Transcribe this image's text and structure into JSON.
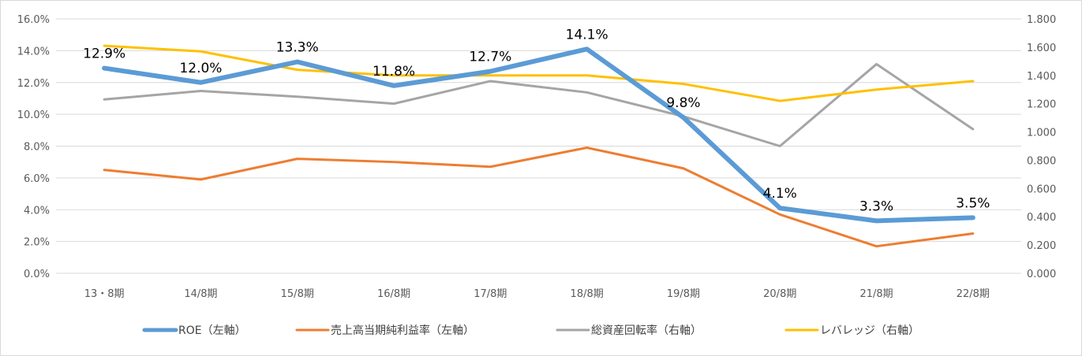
{
  "chart_data": {
    "type": "line",
    "categories": [
      "13・8期",
      "14/8期",
      "15/8期",
      "16/8期",
      "17/8期",
      "18/8期",
      "19/8期",
      "20/8期",
      "21/8期",
      "22/8期"
    ],
    "y_left": {
      "ylim": [
        0,
        16
      ],
      "ticks": [
        "0.0%",
        "2.0%",
        "4.0%",
        "6.0%",
        "8.0%",
        "10.0%",
        "12.0%",
        "14.0%",
        "16.0%"
      ]
    },
    "y_right": {
      "ylim": [
        0,
        1.8
      ],
      "ticks": [
        "0.000",
        "0.200",
        "0.400",
        "0.600",
        "0.800",
        "1.000",
        "1.200",
        "1.400",
        "1.600",
        "1.800"
      ]
    },
    "grid": true,
    "legend_position": "bottom",
    "series": [
      {
        "name": "ROE（左軸）",
        "axis": "left",
        "color": "#5b9bd5",
        "width": 6,
        "values": [
          12.9,
          12.0,
          13.3,
          11.8,
          12.7,
          14.1,
          9.8,
          4.1,
          3.3,
          3.5
        ],
        "labels": [
          "12.9%",
          "12.0%",
          "13.3%",
          "11.8%",
          "12.7%",
          "14.1%",
          "9.8%",
          "4.1%",
          "3.3%",
          "3.5%"
        ]
      },
      {
        "name": "売上高当期純利益率（左軸）",
        "axis": "left",
        "color": "#ed7d31",
        "width": 3,
        "values": [
          6.5,
          5.9,
          7.2,
          7.0,
          6.7,
          7.9,
          6.6,
          3.7,
          1.7,
          2.5
        ]
      },
      {
        "name": "総資産回転率（右軸）",
        "axis": "right",
        "color": "#a5a5a5",
        "width": 3,
        "values": [
          1.23,
          1.29,
          1.25,
          1.2,
          1.36,
          1.28,
          1.11,
          0.9,
          1.48,
          1.02
        ]
      },
      {
        "name": "レバレッジ（右軸）",
        "axis": "right",
        "color": "#ffc000",
        "width": 3,
        "values": [
          1.61,
          1.57,
          1.44,
          1.4,
          1.4,
          1.4,
          1.34,
          1.22,
          1.3,
          1.36
        ]
      }
    ]
  }
}
